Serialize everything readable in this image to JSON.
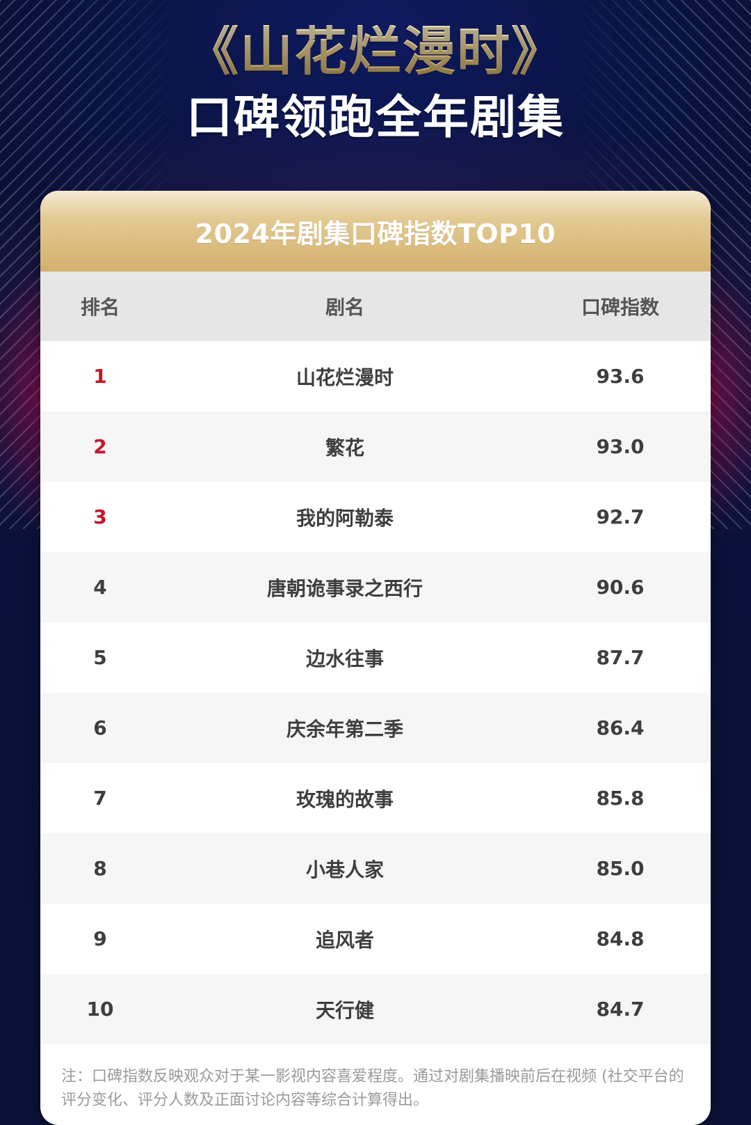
{
  "header": {
    "title_line1": "《山花烂漫时》",
    "title_line2": "口碑领跑全年剧集"
  },
  "card": {
    "title": "2024年剧集口碑指数TOP10",
    "table": {
      "columns": [
        "排名",
        "剧名",
        "口碑指数"
      ],
      "rows": [
        {
          "rank": "1",
          "title": "山花烂漫时",
          "score": "93.6"
        },
        {
          "rank": "2",
          "title": "繁花",
          "score": "93.0"
        },
        {
          "rank": "3",
          "title": "我的阿勒泰",
          "score": "92.7"
        },
        {
          "rank": "4",
          "title": "唐朝诡事录之西行",
          "score": "90.6"
        },
        {
          "rank": "5",
          "title": "边水往事",
          "score": "87.7"
        },
        {
          "rank": "6",
          "title": "庆余年第二季",
          "score": "86.4"
        },
        {
          "rank": "7",
          "title": "玫瑰的故事",
          "score": "85.8"
        },
        {
          "rank": "8",
          "title": "小巷人家",
          "score": "85.0"
        },
        {
          "rank": "9",
          "title": "追风者",
          "score": "84.8"
        },
        {
          "rank": "10",
          "title": "天行健",
          "score": "84.7"
        }
      ]
    },
    "note": "注：口碑指数反映观众对于某一影视内容喜爱程度。通过对剧集播映前后在视频 (社交平台的评分变化、评分人数及正面讨论内容等综合计算得出。"
  },
  "colors": {
    "background": "#0b1238",
    "gold": "#d3b06c",
    "top3_rank": "#c6162a",
    "table_header_bg": "#e6e6e6",
    "zebra_bg": "#f6f6f6"
  }
}
